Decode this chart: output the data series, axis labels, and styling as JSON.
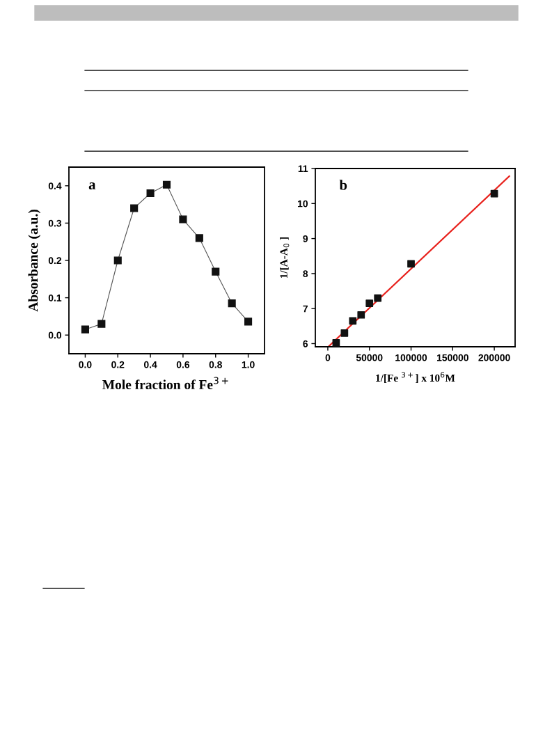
{
  "chart_data": [
    {
      "type": "line",
      "xlabel": "Mole fraction of Fe$^{3+}$",
      "ylabel": "Absorbance (a.u.)",
      "annotations": [
        "a"
      ],
      "x": [
        0.0,
        0.1,
        0.2,
        0.3,
        0.4,
        0.5,
        0.6,
        0.7,
        0.8,
        0.9,
        1.0
      ],
      "series": [
        {
          "color": "#555555",
          "marker": "square",
          "values": [
            0.015,
            0.03,
            0.2,
            0.34,
            0.38,
            0.403,
            0.31,
            0.26,
            0.17,
            0.085,
            0.036
          ]
        }
      ],
      "xlim": [
        -0.1,
        1.1
      ],
      "ylim": [
        -0.05,
        0.45
      ],
      "xticks": [
        {
          "value": 0.0,
          "label": "0.0"
        },
        0.2,
        0.4,
        0.6,
        0.8,
        {
          "value": 1.0,
          "label": "1.0"
        }
      ],
      "yticks": [
        {
          "value": 0.0,
          "label": "0.0"
        },
        0.1,
        0.2,
        0.3,
        0.4
      ],
      "grid": false,
      "legend": false
    },
    {
      "type": "scatter",
      "xlabel": "1/[Fe $^{3+}$] x 10$^{6}$M",
      "ylabel": "1/[A-A$_{0}$ ]",
      "annotations": [
        "b"
      ],
      "x": [
        10000,
        20000,
        30000,
        40000,
        50000,
        60000,
        100000,
        200000
      ],
      "series": [
        {
          "color": "#111111",
          "marker": "square",
          "values": [
            6.02,
            6.3,
            6.65,
            6.82,
            7.15,
            7.3,
            8.28,
            10.28
          ]
        },
        {
          "type": "line",
          "color": "#e8211c",
          "marker": "none",
          "x": [
            1000,
            218000
          ],
          "values": [
            5.92,
            10.78
          ]
        }
      ],
      "xlim": [
        -15000,
        225000
      ],
      "ylim": [
        5.91,
        11
      ],
      "xticks": [
        0,
        50000,
        100000,
        150000,
        200000
      ],
      "yticks": [
        6,
        7,
        8,
        9,
        10,
        11
      ],
      "grid": false,
      "legend": false
    }
  ]
}
